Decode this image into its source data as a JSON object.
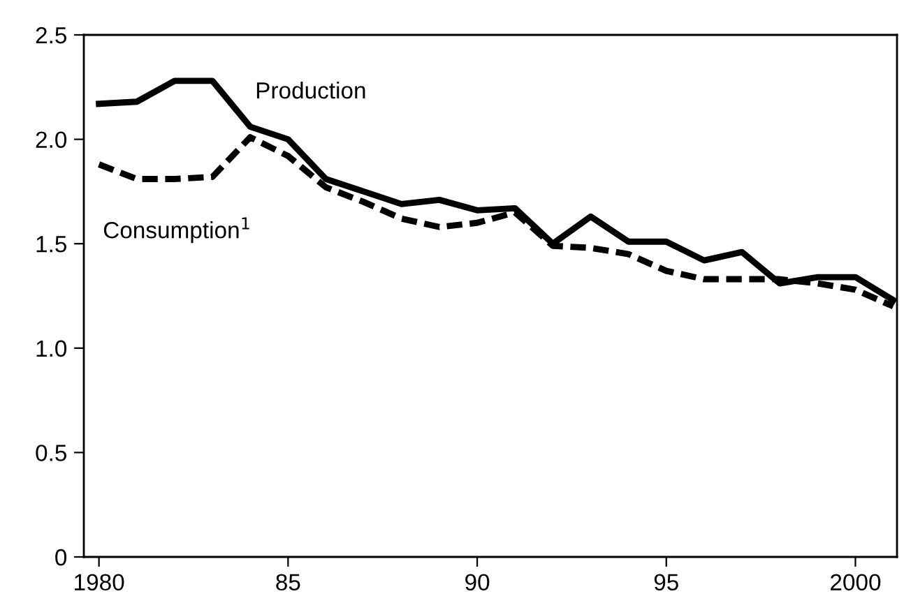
{
  "chart_data": {
    "type": "line",
    "x": [
      1980,
      1981,
      1982,
      1983,
      1984,
      1985,
      1986,
      1987,
      1988,
      1989,
      1990,
      1991,
      1992,
      1993,
      1994,
      1995,
      1996,
      1997,
      1998,
      1999,
      2000,
      2001
    ],
    "series": [
      {
        "name": "Production",
        "color": "#000000",
        "line_style": "solid",
        "values": [
          2.17,
          2.18,
          2.28,
          2.28,
          2.06,
          2.0,
          1.81,
          1.75,
          1.69,
          1.71,
          1.66,
          1.67,
          1.5,
          1.63,
          1.51,
          1.51,
          1.42,
          1.46,
          1.31,
          1.34,
          1.34,
          1.23
        ]
      },
      {
        "name": "Consumption$^{1}$",
        "color": "#000000",
        "line_style": "dashed",
        "values": [
          1.88,
          1.81,
          1.81,
          1.82,
          2.01,
          1.92,
          1.77,
          1.7,
          1.62,
          1.58,
          1.6,
          1.65,
          1.49,
          1.48,
          1.45,
          1.37,
          1.33,
          1.33,
          1.33,
          1.31,
          1.28,
          1.2
        ]
      }
    ],
    "xlim": [
      1979.6,
      2001.1
    ],
    "xticks": [
      {
        "value": 1980,
        "label": "1980"
      },
      {
        "value": 1985,
        "label": "85"
      },
      {
        "value": 1990,
        "label": "90"
      },
      {
        "value": 1995,
        "label": "95"
      },
      {
        "value": 2000,
        "label": "2000"
      }
    ],
    "ylim": [
      0,
      2.5
    ],
    "yticks": [
      {
        "value": 0,
        "label": "0"
      },
      {
        "value": 0.5,
        "label": "0.5"
      },
      {
        "value": 1.0,
        "label": "1.0"
      },
      {
        "value": 1.5,
        "label": "1.5"
      },
      {
        "value": 2.0,
        "label": "2.0"
      },
      {
        "value": 2.5,
        "label": "2.5"
      }
    ],
    "grid": false,
    "legend": false
  }
}
